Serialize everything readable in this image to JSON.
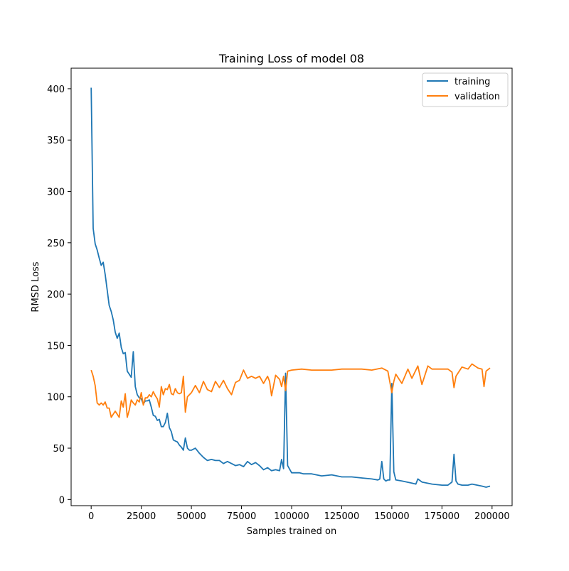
{
  "chart_data": {
    "type": "line",
    "title": "Training Loss of model 08",
    "xlabel": "Samples trained on",
    "ylabel": "RMSD Loss",
    "xlim": [
      -10000,
      210000
    ],
    "ylim": [
      -6,
      420
    ],
    "xticks": [
      0,
      25000,
      50000,
      75000,
      100000,
      125000,
      150000,
      175000,
      200000
    ],
    "yticks": [
      0,
      50,
      100,
      150,
      200,
      250,
      300,
      350,
      400
    ],
    "grid": false,
    "legend_position": "top-right",
    "series": [
      {
        "name": "training",
        "color": "#1f77b4",
        "x": [
          0,
          1000,
          2000,
          3000,
          4000,
          5000,
          6000,
          7000,
          8000,
          9000,
          10000,
          11000,
          12000,
          13000,
          14000,
          15000,
          16000,
          17000,
          18000,
          19000,
          20000,
          21000,
          22000,
          23000,
          24000,
          25000,
          26000,
          27000,
          28000,
          29000,
          30000,
          31000,
          32000,
          33000,
          34000,
          35000,
          36000,
          37000,
          38000,
          39000,
          40000,
          41000,
          42000,
          43000,
          44000,
          45000,
          46000,
          47000,
          48000,
          49000,
          50000,
          52000,
          54000,
          56000,
          58000,
          60000,
          62000,
          64000,
          66000,
          68000,
          70000,
          72000,
          74000,
          76000,
          78000,
          80000,
          82000,
          84000,
          86000,
          88000,
          90000,
          92000,
          94000,
          95000,
          96000,
          97000,
          98000,
          100000,
          102000,
          104000,
          106000,
          108000,
          110000,
          115000,
          120000,
          125000,
          130000,
          135000,
          140000,
          143000,
          144000,
          145000,
          146000,
          147000,
          148000,
          149000,
          150000,
          151000,
          152000,
          155000,
          160000,
          162000,
          163000,
          165000,
          170000,
          175000,
          178000,
          180000,
          181000,
          182000,
          183000,
          185000,
          188000,
          190000,
          195000,
          197000,
          199000
        ],
        "y": [
          401,
          264,
          249,
          243,
          235,
          228,
          231,
          219,
          204,
          189,
          183,
          175,
          163,
          157,
          162,
          148,
          142,
          143,
          125,
          122,
          119,
          144,
          110,
          102,
          99,
          98,
          93,
          96,
          96,
          97,
          90,
          82,
          81,
          77,
          78,
          71,
          71,
          75,
          84,
          70,
          66,
          58,
          57,
          56,
          53,
          51,
          48,
          60,
          50,
          48,
          48,
          50,
          45,
          41,
          38,
          39,
          38,
          38,
          35,
          37,
          35,
          33,
          34,
          32,
          37,
          34,
          36,
          33,
          29,
          31,
          28,
          29,
          28,
          39,
          30,
          123,
          33,
          26,
          26,
          26,
          25,
          25,
          25,
          23,
          24,
          22,
          22,
          21,
          20,
          19,
          20,
          37,
          20,
          18,
          19,
          19,
          113,
          27,
          19,
          18,
          16,
          15,
          20,
          17,
          15,
          14,
          14,
          17,
          44,
          18,
          15,
          14,
          14,
          15,
          13,
          12,
          13
        ]
      },
      {
        "name": "validation",
        "color": "#ff7f0e",
        "x": [
          0,
          1000,
          2000,
          3000,
          4000,
          5000,
          6000,
          7000,
          8000,
          9000,
          10000,
          11000,
          12000,
          13000,
          14000,
          15000,
          16000,
          17000,
          18000,
          19000,
          20000,
          21000,
          22000,
          23000,
          24000,
          25000,
          26000,
          27000,
          28000,
          29000,
          30000,
          31000,
          32000,
          33000,
          34000,
          35000,
          36000,
          37000,
          38000,
          39000,
          40000,
          41000,
          42000,
          43000,
          44000,
          45000,
          46000,
          47000,
          48000,
          50000,
          52000,
          54000,
          56000,
          58000,
          60000,
          62000,
          64000,
          66000,
          68000,
          70000,
          72000,
          74000,
          76000,
          78000,
          80000,
          82000,
          84000,
          86000,
          88000,
          89000,
          90000,
          92000,
          94000,
          95000,
          96000,
          97000,
          98000,
          100000,
          105000,
          110000,
          115000,
          120000,
          125000,
          130000,
          135000,
          140000,
          145000,
          148000,
          150000,
          151000,
          152000,
          155000,
          158000,
          160000,
          163000,
          165000,
          168000,
          170000,
          175000,
          178000,
          180000,
          181000,
          182000,
          185000,
          188000,
          190000,
          193000,
          195000,
          196000,
          197000,
          199000
        ],
        "y": [
          126,
          120,
          111,
          94,
          92,
          94,
          92,
          95,
          89,
          89,
          80,
          83,
          86,
          83,
          80,
          96,
          90,
          103,
          80,
          87,
          97,
          94,
          92,
          97,
          95,
          104,
          92,
          99,
          99,
          102,
          100,
          105,
          101,
          98,
          90,
          110,
          102,
          108,
          107,
          112,
          103,
          102,
          108,
          104,
          103,
          104,
          120,
          85,
          100,
          104,
          111,
          104,
          115,
          107,
          105,
          115,
          109,
          116,
          108,
          102,
          114,
          116,
          126,
          118,
          120,
          118,
          120,
          113,
          120,
          115,
          101,
          121,
          117,
          110,
          120,
          106,
          125,
          126,
          127,
          126,
          126,
          126,
          127,
          127,
          127,
          126,
          128,
          125,
          104,
          115,
          122,
          113,
          127,
          118,
          130,
          112,
          130,
          127,
          127,
          127,
          124,
          109,
          120,
          129,
          127,
          132,
          128,
          127,
          110,
          125,
          128
        ]
      }
    ]
  }
}
